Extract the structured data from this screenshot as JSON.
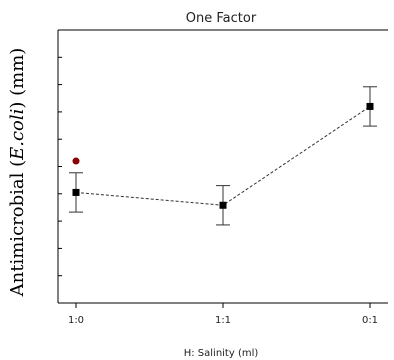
{
  "chart_data": {
    "type": "line",
    "title": "One Factor",
    "xlabel": "H: Salinity (ml)",
    "ylabel_prefix": "Antimicrobial (",
    "ylabel_italic": "E.coli",
    "ylabel_suffix": ") (mm)",
    "categories": [
      "1:0",
      "1:1",
      "0:1"
    ],
    "ylim": [
      0,
      10
    ],
    "grid": false,
    "y_ticks_labeled": false,
    "series": [
      {
        "values": [
          4.05,
          3.58,
          7.2
        ],
        "errors": [
          0.72,
          0.72,
          0.72
        ],
        "line_style": "dashed",
        "marker": "square",
        "color": "#000000"
      }
    ],
    "outlier_points": [
      {
        "category": "1:0",
        "value": 5.2,
        "color": "#8b0000"
      }
    ]
  }
}
